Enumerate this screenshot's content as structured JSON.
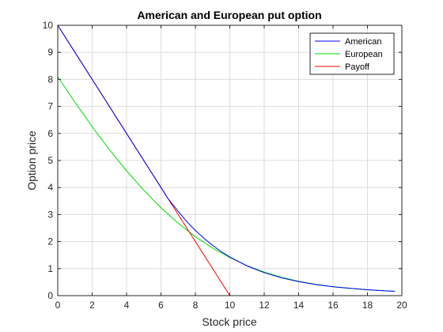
{
  "chart_data": {
    "type": "line",
    "title": "American and European put option",
    "xlabel": "Stock price",
    "ylabel": "Option price",
    "xlim": [
      0,
      20
    ],
    "ylim": [
      0,
      10
    ],
    "xticks": [
      0,
      2,
      4,
      6,
      8,
      10,
      12,
      14,
      16,
      18,
      20
    ],
    "yticks": [
      0,
      1,
      2,
      3,
      4,
      5,
      6,
      7,
      8,
      9,
      10
    ],
    "grid": true,
    "legend_position": "top-right",
    "series": [
      {
        "name": "American",
        "color": "#0000ff",
        "x": [
          0,
          1,
          2,
          3,
          4,
          5,
          6,
          6.4,
          7,
          7.5,
          8,
          8.5,
          9,
          9.5,
          10,
          11,
          12,
          13,
          14,
          15,
          16,
          17,
          18,
          19,
          19.6
        ],
        "y": [
          10,
          9,
          8,
          7,
          6,
          5,
          4,
          3.6,
          3.12,
          2.74,
          2.41,
          2.12,
          1.86,
          1.63,
          1.43,
          1.1,
          0.85,
          0.66,
          0.52,
          0.41,
          0.33,
          0.27,
          0.22,
          0.18,
          0.16
        ]
      },
      {
        "name": "European",
        "color": "#00dd00",
        "x": [
          0,
          1,
          2,
          3,
          4,
          5,
          6,
          7,
          8,
          9,
          10,
          11,
          12,
          13,
          14,
          15,
          16,
          17,
          18,
          19,
          19.6
        ],
        "y": [
          8.1,
          7.15,
          6.25,
          5.4,
          4.62,
          3.9,
          3.25,
          2.68,
          2.18,
          1.76,
          1.41,
          1.11,
          0.87,
          0.68,
          0.53,
          0.42,
          0.33,
          0.27,
          0.22,
          0.18,
          0.16
        ]
      },
      {
        "name": "Payoff",
        "color": "#ff0000",
        "x": [
          0,
          10,
          19.6
        ],
        "y": [
          10,
          0,
          0
        ]
      }
    ]
  }
}
